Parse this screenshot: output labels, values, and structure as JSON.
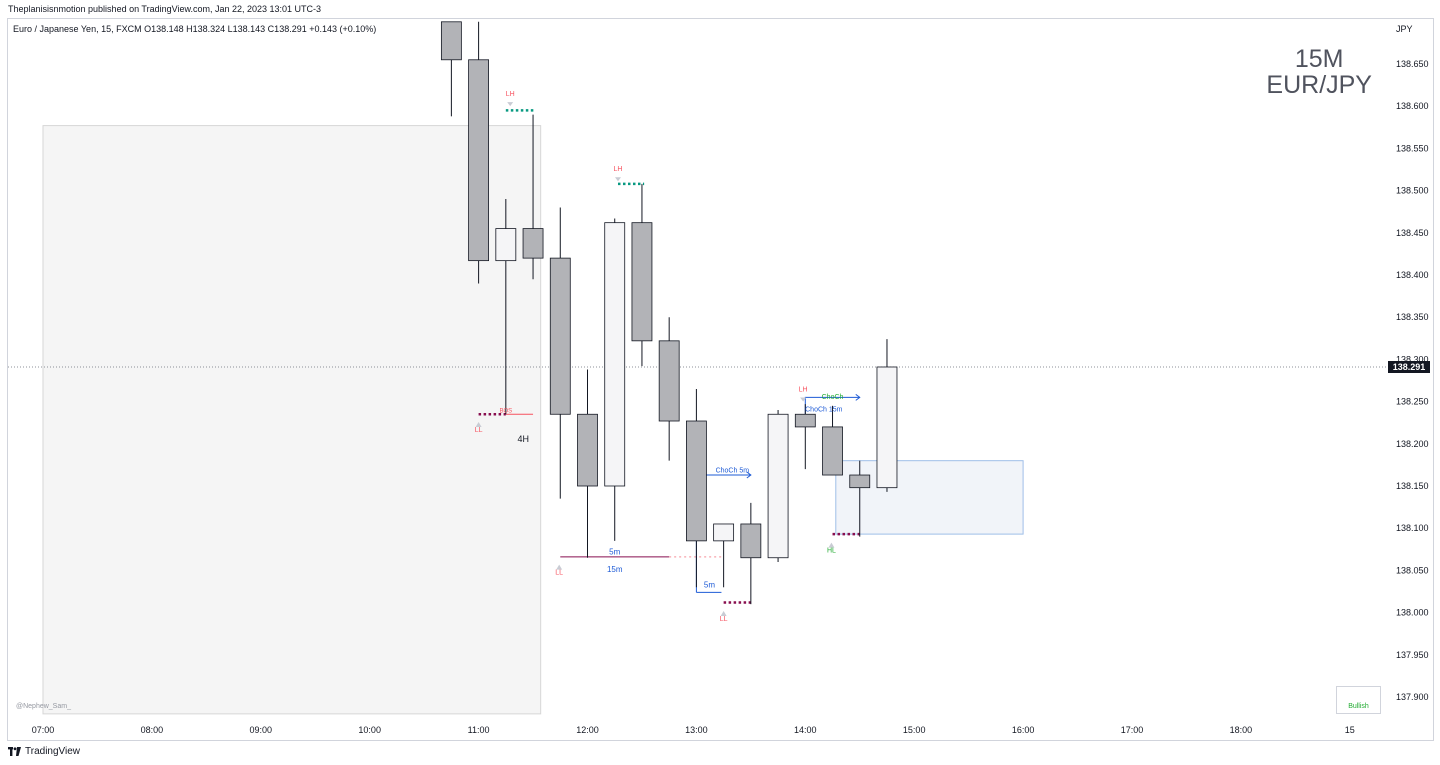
{
  "header": {
    "publisher": "Theplanisisnmotion published on TradingView.com, Jan 22, 2023 13:01 UTC-3",
    "legend": "Euro / Japanese Yen, 15, FXCM  O138.148  H138.324  L138.143  C138.291  +0.143 (+0.10%)",
    "currency": "JPY"
  },
  "watermark": {
    "line1": "15M",
    "line2": "EUR/JPY"
  },
  "author": "@Nephew_Sam_",
  "footer": {
    "brand": "TradingView"
  },
  "bullish_label": "Bullish",
  "colors": {
    "bull_fill": "#f5f5f7",
    "bear_fill": "#b2b3b7",
    "candle_border": "#131722",
    "lh": "#f7525f",
    "ll": "#f7525f",
    "hl": "#22ab32",
    "teal": "#089981",
    "maroon": "#880e4f",
    "choch": "#1e5bd6",
    "fvg_border": "#9fbfe8",
    "price_tag": "#131722"
  },
  "chart_data": {
    "type": "candlestick",
    "symbol": "EUR/JPY",
    "timeframe": "15",
    "price_ticks": [
      138.65,
      138.6,
      138.55,
      138.5,
      138.45,
      138.4,
      138.35,
      138.3,
      138.25,
      138.2,
      138.15,
      138.1,
      138.05,
      138.0,
      137.95,
      137.9
    ],
    "time_ticks": [
      "07:00",
      "08:00",
      "09:00",
      "10:00",
      "11:00",
      "12:00",
      "13:00",
      "14:00",
      "15:00",
      "16:00",
      "17:00",
      "18:00",
      "15"
    ],
    "current_price": "138.291",
    "candles": [
      {
        "t": 10.75,
        "o": 138.7,
        "h": 138.7,
        "l": 138.588,
        "c": 138.655
      },
      {
        "t": 11.0,
        "o": 138.655,
        "h": 138.7,
        "l": 138.39,
        "c": 138.417
      },
      {
        "t": 11.25,
        "o": 138.417,
        "h": 138.49,
        "l": 138.235,
        "c": 138.455
      },
      {
        "t": 11.5,
        "o": 138.455,
        "h": 138.59,
        "l": 138.395,
        "c": 138.42
      },
      {
        "t": 11.75,
        "o": 138.42,
        "h": 138.48,
        "l": 138.135,
        "c": 138.235
      },
      {
        "t": 12.0,
        "o": 138.235,
        "h": 138.288,
        "l": 138.065,
        "c": 138.15
      },
      {
        "t": 12.25,
        "o": 138.15,
        "h": 138.467,
        "l": 138.085,
        "c": 138.462
      },
      {
        "t": 12.5,
        "o": 138.462,
        "h": 138.508,
        "l": 138.292,
        "c": 138.322
      },
      {
        "t": 12.75,
        "o": 138.322,
        "h": 138.35,
        "l": 138.18,
        "c": 138.227
      },
      {
        "t": 13.0,
        "o": 138.227,
        "h": 138.265,
        "l": 138.03,
        "c": 138.085
      },
      {
        "t": 13.25,
        "o": 138.085,
        "h": 138.105,
        "l": 138.03,
        "c": 138.105
      },
      {
        "t": 13.5,
        "o": 138.105,
        "h": 138.13,
        "l": 138.01,
        "c": 138.065
      },
      {
        "t": 13.75,
        "o": 138.065,
        "h": 138.24,
        "l": 138.06,
        "c": 138.235
      },
      {
        "t": 14.0,
        "o": 138.235,
        "h": 138.247,
        "l": 138.17,
        "c": 138.22
      },
      {
        "t": 14.25,
        "o": 138.22,
        "h": 138.245,
        "l": 138.163,
        "c": 138.163
      },
      {
        "t": 14.5,
        "o": 138.163,
        "h": 138.18,
        "l": 138.09,
        "c": 138.148
      },
      {
        "t": 14.75,
        "o": 138.148,
        "h": 138.324,
        "l": 138.143,
        "c": 138.291
      }
    ],
    "zones": [
      {
        "name": "4H",
        "t1": 7.0,
        "t2": 11.57,
        "top": 138.577,
        "bottom": 137.88
      },
      {
        "name": "fvg",
        "t1": 14.28,
        "t2": 16.0,
        "top": 138.18,
        "bottom": 138.093
      }
    ],
    "structure_labels": [
      {
        "text": "LH",
        "t": 11.29,
        "p": 138.612,
        "kind": "lh"
      },
      {
        "text": "LH",
        "t": 12.28,
        "p": 138.523,
        "kind": "lh"
      },
      {
        "text": "LH",
        "t": 13.98,
        "p": 138.262,
        "kind": "lh"
      },
      {
        "text": "LL",
        "t": 11.0,
        "p": 138.214,
        "kind": "ll"
      },
      {
        "text": "LL",
        "t": 11.74,
        "p": 138.045,
        "kind": "ll"
      },
      {
        "text": "LL",
        "t": 13.25,
        "p": 137.99,
        "kind": "ll"
      },
      {
        "text": "HL",
        "t": 14.24,
        "p": 138.071,
        "kind": "hl"
      }
    ],
    "text_labels": [
      {
        "text": "4H",
        "t": 11.41,
        "p": 138.202,
        "color": "#131722",
        "size": 9
      },
      {
        "text": "5m",
        "t": 12.25,
        "p": 138.069,
        "color": "#1e5bd6",
        "size": 8
      },
      {
        "text": "15m",
        "t": 12.25,
        "p": 138.048,
        "color": "#1e5bd6",
        "size": 8
      },
      {
        "text": "5m",
        "t": 13.12,
        "p": 138.03,
        "color": "#1e5bd6",
        "size": 8
      },
      {
        "text": "ChoCh 5m",
        "t": 13.33,
        "p": 138.166,
        "color": "#1e5bd6",
        "size": 7
      },
      {
        "text": "ChoCh",
        "t": 14.25,
        "p": 138.253,
        "color": "#22ab32",
        "size": 7
      },
      {
        "text": "ChoCh 15m",
        "t": 14.17,
        "p": 138.238,
        "color": "#1e5bd6",
        "size": 7
      },
      {
        "text": "BOS",
        "t": 11.25,
        "p": 138.237,
        "color": "#f7525f",
        "size": 6
      }
    ],
    "levels": [
      {
        "t1": 11.25,
        "t2": 11.51,
        "p": 138.595,
        "color": "#089981",
        "style": "dotted-thick"
      },
      {
        "t1": 12.28,
        "t2": 12.52,
        "p": 138.508,
        "color": "#089981",
        "style": "dotted-thick"
      },
      {
        "t1": 11.0,
        "t2": 11.25,
        "p": 138.235,
        "color": "#880e4f",
        "style": "dotted-thick"
      },
      {
        "t1": 11.25,
        "t2": 11.5,
        "p": 138.235,
        "color": "#f7525f",
        "style": "solid"
      },
      {
        "t1": 13.25,
        "t2": 13.5,
        "p": 138.012,
        "color": "#880e4f",
        "style": "dotted-thick"
      },
      {
        "t1": 14.25,
        "t2": 14.5,
        "p": 138.093,
        "color": "#880e4f",
        "style": "dotted-thick"
      },
      {
        "t1": 11.75,
        "t2": 12.75,
        "p": 138.066,
        "color": "#880e4f",
        "style": "solid"
      },
      {
        "t1": 12.75,
        "t2": 13.25,
        "p": 138.066,
        "color": "#f7a0a8",
        "style": "dotted"
      }
    ],
    "choch_paths": [
      {
        "points": [
          [
            13.0,
            138.024
          ],
          [
            13.0,
            138.163
          ],
          [
            13.5,
            138.163
          ]
        ],
        "color": "#1e5bd6"
      },
      {
        "points": [
          [
            13.0,
            138.024
          ],
          [
            13.23,
            138.024
          ]
        ],
        "color": "#1e5bd6"
      },
      {
        "points": [
          [
            14.0,
            138.222
          ],
          [
            14.0,
            138.255
          ],
          [
            14.5,
            138.255
          ]
        ],
        "color": "#1e5bd6"
      }
    ]
  }
}
